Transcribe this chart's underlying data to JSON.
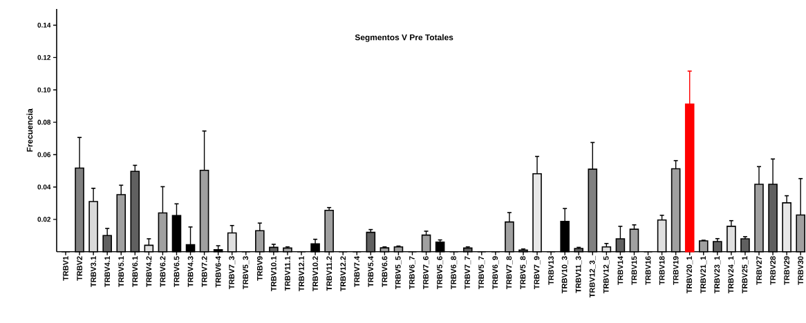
{
  "chart_data": {
    "type": "bar",
    "title": "Segmentos V Pre Totales",
    "ylabel": "Frecuencia",
    "categories": [
      "TRBV1",
      "TRBV2",
      "TRBV3.1",
      "TRBV4.1",
      "TRBV5.1",
      "TRBV6.1",
      "TRBV4.2",
      "TRBV6.2",
      "TRBV6.5",
      "TRBV4.3",
      "TRBV7.2",
      "TRBV6-4",
      "TRBV7_3",
      "TRBV5_3",
      "TRBV9",
      "TRBV10.1",
      "TRBV11.1",
      "TRBV12.1",
      "TRBV10.2",
      "TRBV11.2",
      "TRBV12.2",
      "TRBV7.4",
      "TRBV5.4",
      "TRBV6.6",
      "TRBV5_5",
      "TRBV6_7",
      "TRBV7_6",
      "TRBV5_6",
      "TRBV6_8",
      "TRBV7_7",
      "TRBV5_7",
      "TRBV6_9",
      "TRBV7_8",
      "TRBV5_8",
      "TRBV7_9",
      "TRBV13",
      "TRBV10_3",
      "TRBV11_3",
      "TRBV12_3_",
      "TRBV12_5",
      "TRBV14",
      "TRBV15",
      "TRBV16",
      "TRBV18",
      "TRBV19",
      "TRBV20_1",
      "TRBV21_1",
      "TRBV23_1",
      "TRBV24_1",
      "TRBV25_1",
      "TRBV27",
      "TRBV28",
      "TRBV29",
      "TRBV30"
    ],
    "values": [
      0,
      0.0517,
      0.031,
      0.01,
      0.0353,
      0.0497,
      0.004,
      0.024,
      0.0224,
      0.0043,
      0.0503,
      0.0013,
      0.0116,
      0,
      0.013,
      0.0027,
      0.0023,
      0,
      0.0049,
      0.0256,
      0,
      0,
      0.012,
      0.0024,
      0.003,
      0,
      0.0103,
      0.0059,
      0,
      0.0023,
      0,
      0,
      0.0184,
      0.001,
      0.0482,
      0,
      0.0187,
      0.002,
      0.051,
      0.003,
      0.008,
      0.0139,
      0,
      0.0196,
      0.0513,
      0.0912,
      0.0067,
      0.0063,
      0.0157,
      0.008,
      0.0417,
      0.0417,
      0.0302,
      0.0227
    ],
    "errors": [
      null,
      [
        0.0517,
        0.0706
      ],
      [
        0.031,
        0.0392
      ],
      [
        0.01,
        0.0144
      ],
      [
        0.0353,
        0.0411
      ],
      [
        0.0497,
        0.0534
      ],
      [
        0.004,
        0.008
      ],
      [
        0.024,
        0.0402
      ],
      [
        0.0224,
        0.0296
      ],
      [
        0.0043,
        0.0153
      ],
      [
        0.0503,
        0.0746
      ],
      [
        0.0013,
        0.0037
      ],
      [
        0.0116,
        0.0162
      ],
      null,
      [
        0.013,
        0.0177
      ],
      [
        0.0027,
        0.0046
      ],
      [
        0.0023,
        0.003
      ],
      null,
      [
        0.0049,
        0.0077
      ],
      [
        0.0256,
        0.0273
      ],
      null,
      null,
      [
        0.012,
        0.0137
      ],
      [
        0.0024,
        0.003
      ],
      [
        0.003,
        0.0035
      ],
      null,
      [
        0.0103,
        0.0127
      ],
      [
        0.0059,
        0.0073
      ],
      null,
      [
        0.0023,
        0.003
      ],
      null,
      null,
      [
        0.0184,
        0.0242
      ],
      [
        0.001,
        0.0017
      ],
      [
        0.0482,
        0.0589
      ],
      null,
      [
        0.0187,
        0.0267
      ],
      [
        0.002,
        0.0027
      ],
      [
        0.051,
        0.0675
      ],
      [
        0.003,
        0.0051
      ],
      [
        0.008,
        0.0157
      ],
      [
        0.0139,
        0.0166
      ],
      null,
      [
        0.0196,
        0.0225
      ],
      [
        0.0513,
        0.0563
      ],
      [
        0.0912,
        0.1116
      ],
      [
        0.0067,
        0.0071
      ],
      [
        0.0063,
        0.0081
      ],
      [
        0.0157,
        0.0192
      ],
      [
        0.008,
        0.0093
      ],
      [
        0.0417,
        0.0526
      ],
      [
        0.0417,
        0.0573
      ],
      [
        0.0302,
        0.0346
      ],
      [
        0.0227,
        0.0452
      ]
    ],
    "colors": [
      "#808080",
      "#808080",
      "#d9d9d9",
      "#606060",
      "#a0a0a0",
      "#606060",
      "#e0e0e0",
      "#a0a0a0",
      "#000000",
      "#000000",
      "#a0a0a0",
      "#000000",
      "#e0e0e0",
      "#808080",
      "#a0a0a0",
      "#606060",
      "#a0a0a0",
      "#808080",
      "#000000",
      "#a0a0a0",
      "#808080",
      "#808080",
      "#606060",
      "#a0a0a0",
      "#a0a0a0",
      "#808080",
      "#a0a0a0",
      "#000000",
      "#808080",
      "#606060",
      "#808080",
      "#808080",
      "#a0a0a0",
      "#606060",
      "#e8e8e8",
      "#808080",
      "#000000",
      "#606060",
      "#808080",
      "#e0e0e0",
      "#606060",
      "#a0a0a0",
      "#808080",
      "#e0e0e0",
      "#a0a0a0",
      "#ff0000",
      "#a0a0a0",
      "#606060",
      "#e0e0e0",
      "#606060",
      "#a0a0a0",
      "#606060",
      "#e8e8e8",
      "#a0a0a0"
    ],
    "ylim": [
      0,
      0.15
    ],
    "yticks": [
      0.02,
      0.04,
      0.06,
      0.08,
      {
        "value": 0.1,
        "label": "0.10"
      },
      0.12,
      0.14
    ]
  }
}
